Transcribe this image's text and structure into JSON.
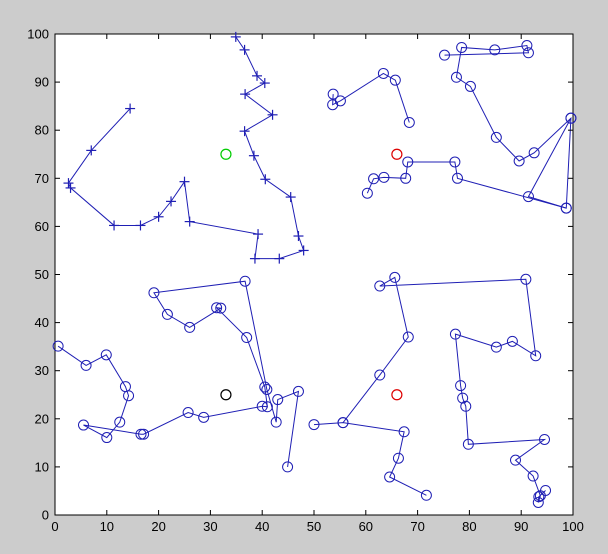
{
  "window": {
    "background_color": "#cccccc"
  },
  "chart_data": {
    "type": "line",
    "title": "",
    "xlabel": "",
    "ylabel": "",
    "xlim": [
      0,
      100
    ],
    "ylim": [
      0,
      100
    ],
    "grid": false,
    "line_color": "#1f1fb4",
    "x_ticks": [
      "0",
      "10",
      "20",
      "30",
      "40",
      "50",
      "60",
      "70",
      "80",
      "90",
      "100"
    ],
    "y_ticks": [
      "0",
      "10",
      "20",
      "30",
      "40",
      "50",
      "60",
      "70",
      "80",
      "90",
      "100"
    ],
    "series": [
      {
        "marker": "plus",
        "color": "#1f1fb4",
        "points": [
          [
            14.5,
            84.5
          ],
          [
            7,
            75.8
          ],
          [
            2.6,
            69
          ],
          [
            3,
            68
          ],
          [
            11.4,
            60.2
          ],
          [
            16.5,
            60.2
          ],
          [
            20,
            62
          ],
          [
            22.4,
            65.2
          ],
          [
            25,
            69.3
          ],
          [
            26,
            61
          ],
          [
            39.2,
            58.4
          ],
          [
            38.6,
            53.3
          ],
          [
            43.3,
            53.3
          ],
          [
            48,
            55
          ],
          [
            47,
            58
          ],
          [
            45.5,
            66.1
          ],
          [
            40.6,
            69.8
          ],
          [
            38.4,
            74.7
          ],
          [
            36.6,
            79.8
          ],
          [
            42,
            83.2
          ],
          [
            36.7,
            87.5
          ],
          [
            40.5,
            89.8
          ],
          [
            39,
            91.3
          ],
          [
            36.6,
            96.7
          ],
          [
            34.9,
            99.4
          ]
        ]
      },
      {
        "marker": "circle",
        "color": "#1f1fb4",
        "points": [
          [
            60.3,
            66.9
          ],
          [
            61.5,
            69.9
          ],
          [
            63.5,
            70.2
          ],
          [
            67.7,
            70
          ],
          [
            68.1,
            73.4
          ],
          [
            77.2,
            73.4
          ],
          [
            77.7,
            70
          ],
          [
            98.7,
            63.8
          ],
          [
            99.6,
            82.5
          ],
          [
            92.5,
            75.3
          ],
          [
            89.6,
            73.6
          ],
          [
            85.2,
            78.5
          ],
          [
            80.2,
            89.1
          ],
          [
            77.5,
            91
          ],
          [
            78.5,
            97.2
          ],
          [
            84.9,
            96.7
          ],
          [
            91.1,
            97.6
          ],
          [
            91.4,
            96.1
          ],
          [
            75.2,
            95.6
          ]
        ]
      },
      {
        "marker": "circle",
        "color": "#1f1fb4",
        "points": [
          [
            68.4,
            81.6
          ],
          [
            65.7,
            90.4
          ],
          [
            63.4,
            91.8
          ],
          [
            55.1,
            86.1
          ],
          [
            53.6,
            85.3
          ],
          [
            53.7,
            87.5
          ]
        ]
      },
      {
        "marker": "circle",
        "color": "#1f1fb4",
        "points": [
          [
            99.6,
            82.5
          ],
          [
            91.4,
            66.2
          ],
          [
            98.7,
            63.8
          ]
        ]
      },
      {
        "marker": "circle",
        "color": "#1f1fb4",
        "points": [
          [
            0.6,
            35.1
          ],
          [
            6,
            31.1
          ],
          [
            9.9,
            33.3
          ],
          [
            13.6,
            26.7
          ],
          [
            14.2,
            24.8
          ],
          [
            12.5,
            19.3
          ],
          [
            10,
            16.1
          ],
          [
            5.5,
            18.7
          ],
          [
            16.6,
            16.8
          ],
          [
            17.1,
            16.8
          ],
          [
            25.7,
            21.3
          ],
          [
            28.7,
            20.3
          ],
          [
            40,
            22.6
          ],
          [
            41,
            22.5
          ],
          [
            40.5,
            26.6
          ],
          [
            37,
            36.9
          ],
          [
            31.2,
            43.1
          ],
          [
            32,
            43
          ],
          [
            26,
            39
          ],
          [
            21.7,
            41.7
          ],
          [
            19.1,
            46.2
          ],
          [
            36.7,
            48.6
          ],
          [
            40.9,
            26.1
          ],
          [
            42.7,
            19.3
          ],
          [
            43,
            24
          ],
          [
            47,
            25.7
          ],
          [
            44.9,
            10
          ]
        ]
      },
      {
        "marker": "circle",
        "color": "#1f1fb4",
        "points": [
          [
            50,
            18.8
          ],
          [
            55.6,
            19.2
          ],
          [
            67.4,
            17.3
          ],
          [
            66.3,
            11.8
          ],
          [
            64.6,
            7.9
          ],
          [
            71.7,
            4.1
          ]
        ]
      },
      {
        "marker": "circle",
        "color": "#1f1fb4",
        "points": [
          [
            55.6,
            19.2
          ],
          [
            62.7,
            29.1
          ],
          [
            68.2,
            37
          ],
          [
            65.6,
            49.4
          ],
          [
            62.7,
            47.6
          ],
          [
            90.9,
            49
          ],
          [
            92.8,
            33.1
          ],
          [
            88.3,
            36.1
          ],
          [
            85.2,
            34.9
          ],
          [
            77.3,
            37.6
          ],
          [
            78.3,
            26.9
          ],
          [
            78.7,
            24.3
          ],
          [
            79.3,
            22.6
          ],
          [
            79.8,
            14.7
          ],
          [
            94.5,
            15.7
          ],
          [
            88.9,
            11.4
          ],
          [
            92.3,
            8.1
          ],
          [
            93.7,
            4
          ],
          [
            93.3,
            2.6
          ],
          [
            93.4,
            3.8
          ],
          [
            94.7,
            5.1
          ]
        ]
      }
    ],
    "special_markers": [
      {
        "x": 33,
        "y": 75,
        "color": "#00cc00"
      },
      {
        "x": 66,
        "y": 75,
        "color": "#dd0000"
      },
      {
        "x": 33,
        "y": 25,
        "color": "#000000"
      },
      {
        "x": 66,
        "y": 25,
        "color": "#dd0000"
      }
    ]
  }
}
